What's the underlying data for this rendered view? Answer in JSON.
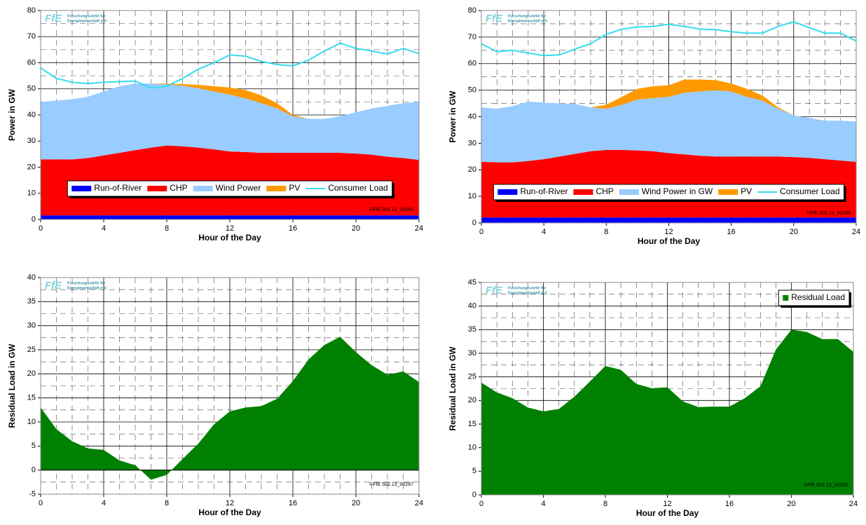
{
  "logo": {
    "mark": "FfE",
    "lines": [
      "Forschungsstelle für",
      "Energiewirtschaft e.V."
    ]
  },
  "chart_data": [
    {
      "type": "area",
      "stacked": true,
      "x_label": "Hour of the Day",
      "y_label": "Power in GW",
      "copyright": "©FfE 502.13_00286",
      "x": [
        0,
        1,
        2,
        3,
        4,
        5,
        6,
        7,
        8,
        9,
        10,
        11,
        12,
        13,
        14,
        15,
        16,
        17,
        18,
        19,
        20,
        21,
        22,
        23,
        24
      ],
      "xlim": [
        0,
        24
      ],
      "xticks": [
        0,
        4,
        8,
        12,
        16,
        20,
        24
      ],
      "ylim": [
        0,
        80
      ],
      "yticks": [
        0,
        10,
        20,
        30,
        40,
        50,
        60,
        70,
        80
      ],
      "grid": true,
      "legend": "lower center",
      "series": [
        {
          "name": "Run-of-River",
          "color": "#0000ff",
          "values": [
            1.5,
            1.5,
            1.5,
            1.5,
            1.5,
            1.5,
            1.5,
            1.5,
            1.5,
            1.5,
            1.5,
            1.5,
            1.5,
            1.5,
            1.5,
            1.5,
            1.5,
            1.5,
            1.5,
            1.5,
            1.5,
            1.5,
            1.5,
            1.5,
            1.5
          ]
        },
        {
          "name": "CHP",
          "color": "#ff0000",
          "values": [
            21.5,
            21.5,
            21.5,
            22,
            23,
            24,
            25,
            26,
            26.8,
            26.5,
            26,
            25.3,
            24.5,
            24.3,
            24,
            24,
            24,
            24,
            24,
            24,
            23.7,
            23.3,
            22.5,
            22,
            21.3
          ]
        },
        {
          "name": "Wind Power",
          "color": "#99ccff",
          "values": [
            22,
            22.5,
            23,
            23.5,
            24.5,
            25.5,
            25.5,
            24.5,
            23.4,
            23.2,
            22.7,
            22.2,
            21.8,
            20.5,
            19,
            17,
            14,
            13,
            13,
            14,
            15.8,
            17.7,
            19.5,
            21,
            22.2
          ]
        },
        {
          "name": "PV",
          "color": "#ff9900",
          "values": [
            0,
            0,
            0,
            0,
            0,
            0,
            0,
            0,
            0.3,
            0.6,
            1.3,
            2,
            2.7,
            3.2,
            3,
            2,
            0.5,
            0,
            0,
            0,
            0,
            0,
            0,
            0,
            0
          ]
        },
        {
          "name": "Consumer Load",
          "color": "#33ddee",
          "type": "line",
          "values": [
            58,
            54,
            52.5,
            52,
            52.5,
            52.8,
            53,
            50.3,
            51,
            54,
            57.5,
            60,
            63,
            62.5,
            60.5,
            59.3,
            58.8,
            61,
            64.5,
            67.5,
            65.5,
            64.5,
            63.3,
            65.5,
            63.5
          ]
        }
      ]
    },
    {
      "type": "area",
      "stacked": true,
      "x_label": "Hour of the Day",
      "y_label": "Power in GW",
      "copyright": "©FfE 502.13_00288",
      "x": [
        0,
        1,
        2,
        3,
        4,
        5,
        6,
        7,
        8,
        9,
        10,
        11,
        12,
        13,
        14,
        15,
        16,
        17,
        18,
        19,
        20,
        21,
        22,
        23,
        24
      ],
      "xlim": [
        0,
        24
      ],
      "xticks": [
        0,
        4,
        8,
        12,
        16,
        20,
        24
      ],
      "ylim": [
        0,
        80
      ],
      "yticks": [
        0,
        10,
        20,
        30,
        40,
        50,
        60,
        70,
        80
      ],
      "grid": true,
      "legend": "lower center",
      "series": [
        {
          "name": "Run-of-River",
          "color": "#0000ff",
          "values": [
            2,
            2,
            2,
            2,
            2,
            2,
            2,
            2,
            2,
            2,
            2,
            2,
            2,
            2,
            2,
            2,
            2,
            2,
            2,
            2,
            2,
            2,
            2,
            2,
            2
          ]
        },
        {
          "name": "CHP",
          "color": "#ff0000",
          "values": [
            21,
            20.8,
            20.8,
            21.3,
            22,
            23,
            24,
            25,
            25.5,
            25.5,
            25.3,
            25,
            24.3,
            23.8,
            23.3,
            23,
            23,
            23,
            23,
            23,
            22.8,
            22.5,
            22,
            21.5,
            21
          ]
        },
        {
          "name": "Wind Power in GW",
          "color": "#99ccff",
          "values": [
            20.5,
            20.2,
            21.2,
            22.4,
            21.3,
            20,
            18.8,
            16.5,
            15.5,
            17,
            19.2,
            20,
            21.2,
            23.2,
            24.2,
            25,
            24.5,
            22.5,
            21,
            18,
            15.7,
            15,
            14.5,
            15,
            15.2
          ]
        },
        {
          "name": "PV",
          "color": "#ff9900",
          "values": [
            0,
            0,
            0,
            0,
            0,
            0,
            0,
            0,
            1.5,
            3,
            4,
            4.5,
            4.3,
            5,
            4.5,
            3.8,
            3,
            3,
            2,
            0.5,
            0,
            0,
            0,
            0,
            0
          ]
        },
        {
          "name": "Consumer Load",
          "color": "#33ddee",
          "type": "line",
          "values": [
            67.5,
            64.5,
            65,
            64,
            63,
            63.3,
            65.5,
            67.5,
            71,
            73,
            73.8,
            74,
            74.8,
            74,
            73,
            72.8,
            72,
            71.5,
            71.5,
            74,
            75.8,
            73.5,
            71.5,
            71.5,
            68.5
          ]
        }
      ]
    },
    {
      "type": "area",
      "stacked": false,
      "x_label": "Hour of the Day",
      "y_label": "Residual Load in GW",
      "copyright": "©FfE 502.13_00287",
      "x": [
        0,
        1,
        2,
        3,
        4,
        5,
        6,
        7,
        8,
        9,
        10,
        11,
        12,
        13,
        14,
        15,
        16,
        17,
        18,
        19,
        20,
        21,
        22,
        23,
        24
      ],
      "xlim": [
        0,
        24
      ],
      "xticks": [
        0,
        4,
        8,
        12,
        16,
        20,
        24
      ],
      "ylim": [
        -5,
        40
      ],
      "yticks": [
        -5,
        0,
        5,
        10,
        15,
        20,
        25,
        30,
        35,
        40
      ],
      "grid": true,
      "legend": false,
      "series": [
        {
          "name": "Residual Load",
          "color": "#008000",
          "values": [
            13,
            8.5,
            6,
            4.5,
            4.2,
            2,
            1,
            -2,
            -1,
            2.3,
            5.5,
            9.5,
            12.2,
            13,
            13.3,
            14.8,
            18.5,
            23,
            26,
            27.7,
            24.5,
            21.8,
            19.8,
            20.5,
            18.3
          ]
        }
      ]
    },
    {
      "type": "area",
      "stacked": false,
      "x_label": "Hour of the Day",
      "y_label": "Residual Load in GW",
      "copyright": "©FfE 502.13_00289",
      "x": [
        0,
        1,
        2,
        3,
        4,
        5,
        6,
        7,
        8,
        9,
        10,
        11,
        12,
        13,
        14,
        15,
        16,
        17,
        18,
        19,
        20,
        21,
        22,
        23,
        24
      ],
      "xlim": [
        0,
        24
      ],
      "xticks": [
        0,
        4,
        8,
        12,
        16,
        20,
        24
      ],
      "ylim": [
        0,
        45
      ],
      "yticks": [
        0,
        5,
        10,
        15,
        20,
        25,
        30,
        35,
        40,
        45
      ],
      "grid": true,
      "legend": "upper right",
      "series": [
        {
          "name": "Residual Load",
          "color": "#008000",
          "values": [
            23.8,
            21.7,
            20.5,
            18.5,
            17.7,
            18.2,
            20.8,
            24,
            27.3,
            26.5,
            23.5,
            22.6,
            22.8,
            19.8,
            18.6,
            18.7,
            18.7,
            20.5,
            23,
            30.8,
            35,
            34.5,
            33,
            33,
            30.3
          ]
        }
      ]
    }
  ]
}
